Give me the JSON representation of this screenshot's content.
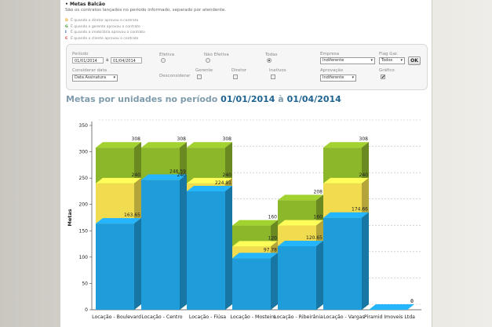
{
  "header": {
    "title": "Metas Balcão",
    "subtitle": "São os contratos lançados no período informado, separado por atendente."
  },
  "legend": [
    {
      "code": "D",
      "color": "#e8a317",
      "text": "É quando o diretor aprovou o contrato"
    },
    {
      "code": "G",
      "color": "#3a9a2a",
      "text": "É quando o gerente aprovou o contrato"
    },
    {
      "code": "I",
      "color": "#1f4fa8",
      "text": "É quando a imobiliária aprovou o contrato"
    },
    {
      "code": "C",
      "color": "#d03030",
      "text": "É quando o cliente aprovou o contrato"
    }
  ],
  "filters": {
    "periodo_label": "Período",
    "date_from": "01/01/2014",
    "date_sep": "à",
    "date_to": "01/04/2014",
    "considerar_label": "Considerar data",
    "considerar_value": "Data Assinatura",
    "efetiva_label": "Efetiva",
    "nao_efetiva_label": "Não Efetiva",
    "todas_label": "Todas",
    "desconsiderar_label": "Desconsiderar",
    "gerente_label": "Gerente",
    "diretor_label": "Diretor",
    "inativos_label": "Inativos",
    "empresa_label": "Empresa",
    "empresa_value": "Indiferente",
    "flag_label": "Flag Gar.",
    "flag_value": "Todos",
    "ok_label": "OK",
    "aprovacao_label": "Aprovação",
    "aprovacao_value": "Indiferente",
    "grafico_label": "Gráfico",
    "grafico_mark": "✔"
  },
  "chart_title": {
    "prefix": "Metas por unidades no período",
    "date_from": "01/01/2014",
    "sep": "à",
    "date_to": "01/04/2014"
  },
  "chart_data": {
    "type": "bar",
    "ylabel": "Metas",
    "xlabel": "",
    "ylim": [
      0,
      350
    ],
    "yticks": [
      0,
      50,
      100,
      150,
      200,
      250,
      300,
      350
    ],
    "grid": true,
    "categories": [
      "Locação - Boulevard",
      "Locação - Centro",
      "Locação - Fiúsa",
      "Locação - Mosteiro",
      "Locação - Ribeirânia",
      "Locação - Vargas",
      "Piramid Imoveis Ltda"
    ],
    "series": [
      {
        "color": "#f0dc4e",
        "values": [
          240,
          240,
          240,
          120,
          160,
          240,
          0
        ]
      },
      {
        "color": "#8db72a",
        "values": [
          308,
          308,
          308,
          160,
          208,
          308,
          0
        ]
      },
      {
        "color": "#1f9ddb",
        "values": [
          163.65,
          246.59,
          224.91,
          97.78,
          120.65,
          174.66,
          0
        ]
      }
    ],
    "value_labels": {
      "green": [
        "308",
        "308",
        "308",
        "160",
        "208",
        "308",
        "0"
      ],
      "yellow": [
        "240",
        "240",
        "240",
        "120",
        "160",
        "240",
        "0"
      ],
      "blue": [
        "163.65",
        "246.59",
        "224.91",
        "97.78",
        "120.65",
        "174.66",
        "0"
      ]
    }
  }
}
